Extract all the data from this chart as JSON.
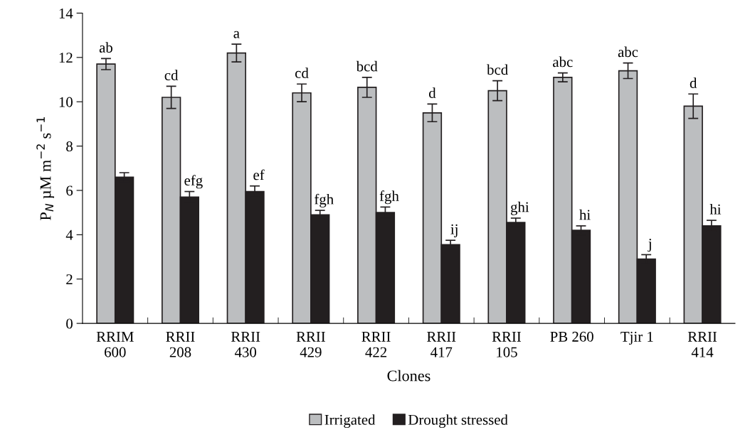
{
  "chart_data": {
    "type": "bar",
    "xlabel": "Clones",
    "ylabel": "P$_{N}$ µM m$^{−2}$ s$^{−1}$",
    "categories": [
      "RRIM\n600",
      "RRII\n208",
      "RRII\n430",
      "RRII\n429",
      "RRII\n422",
      "RRII\n417",
      "RRII\n105",
      "PB 260",
      "Tjir 1",
      "RRII\n414"
    ],
    "series": [
      {
        "name": "Irrigated",
        "color": "#bcbec0",
        "values": [
          11.7,
          10.2,
          12.2,
          10.4,
          10.65,
          9.5,
          10.5,
          11.1,
          11.4,
          9.8
        ],
        "errors": [
          0.25,
          0.5,
          0.4,
          0.4,
          0.45,
          0.4,
          0.45,
          0.2,
          0.35,
          0.55
        ]
      },
      {
        "name": "Drought stressed",
        "color": "#231f20",
        "values": [
          6.6,
          5.7,
          5.95,
          4.9,
          5.0,
          3.55,
          4.55,
          4.2,
          2.9,
          4.4
        ],
        "errors": [
          0.2,
          0.25,
          0.25,
          0.2,
          0.25,
          0.2,
          0.2,
          0.2,
          0.2,
          0.25
        ]
      }
    ],
    "ylim": [
      0,
      14
    ],
    "yticks": [
      0,
      2,
      4,
      6,
      8,
      10,
      12,
      14
    ],
    "grid": false,
    "legend": "bottom",
    "annotations": [
      {
        "text": "ab",
        "x": "RRIM\n600",
        "y": 11.7
      },
      {
        "text": "cd",
        "x": "RRII\n208",
        "y": 10.2
      },
      {
        "text": "a",
        "x": "RRII\n430",
        "y": 12.2
      },
      {
        "text": "cd",
        "x": "RRII\n429",
        "y": 10.4
      },
      {
        "text": "bcd",
        "x": "RRII\n422",
        "y": 10.65
      },
      {
        "text": "d",
        "x": "RRII\n417",
        "y": 9.5
      },
      {
        "text": "bcd",
        "x": "RRII\n105",
        "y": 10.5
      },
      {
        "text": "abc",
        "x": "PB 260",
        "y": 11.1
      },
      {
        "text": "abc",
        "x": "Tjir 1",
        "y": 11.4
      },
      {
        "text": "d",
        "x": "RRII\n414",
        "y": 9.8
      },
      {
        "text": "efg",
        "x": "RRII\n208",
        "y": 5.7
      },
      {
        "text": "ef",
        "x": "RRII\n430",
        "y": 5.95
      },
      {
        "text": "fgh",
        "x": "RRII\n429",
        "y": 4.9
      },
      {
        "text": "fgh",
        "x": "RRII\n422",
        "y": 5.0
      },
      {
        "text": "ij",
        "x": "RRII\n417",
        "y": 3.55
      },
      {
        "text": "ghi",
        "x": "RRII\n105",
        "y": 4.55
      },
      {
        "text": "hi",
        "x": "PB 260",
        "y": 4.2
      },
      {
        "text": "j",
        "x": "Tjir 1",
        "y": 2.9
      },
      {
        "text": "hi",
        "x": "RRII\n414",
        "y": 4.4
      }
    ]
  }
}
